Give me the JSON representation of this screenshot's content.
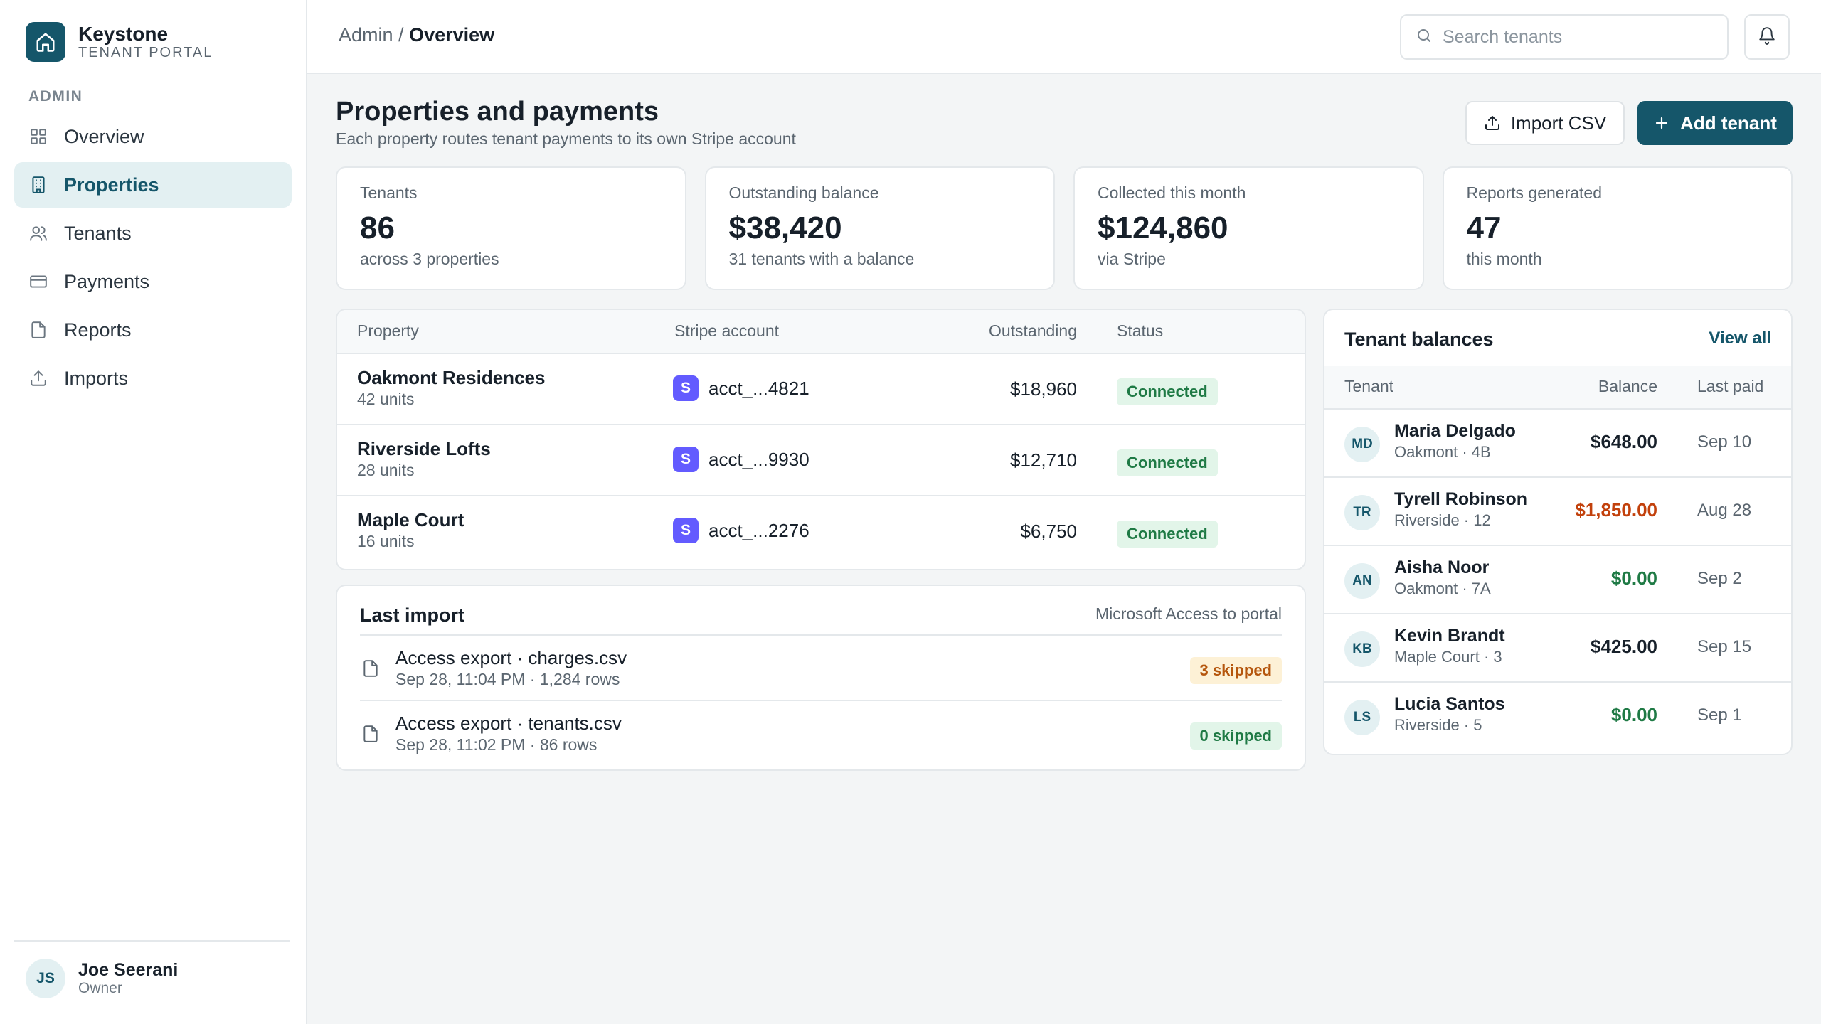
{
  "brand": {
    "name": "Keystone",
    "subtitle": "TENANT PORTAL"
  },
  "sidebar": {
    "section_label": "ADMIN",
    "items": [
      {
        "label": "Overview",
        "icon": "grid-icon",
        "active": false
      },
      {
        "label": "Properties",
        "icon": "building-icon",
        "active": true
      },
      {
        "label": "Tenants",
        "icon": "users-icon",
        "active": false
      },
      {
        "label": "Payments",
        "icon": "credit-card-icon",
        "active": false
      },
      {
        "label": "Reports",
        "icon": "file-icon",
        "active": false
      },
      {
        "label": "Imports",
        "icon": "upload-icon",
        "active": false
      }
    ],
    "user": {
      "initials": "JS",
      "name": "Joe Seerani",
      "role": "Owner"
    }
  },
  "topbar": {
    "breadcrumb_root": "Admin /",
    "breadcrumb_current": "Overview",
    "search_placeholder": "Search tenants"
  },
  "page": {
    "title": "Properties and payments",
    "subtitle": "Each property routes tenant payments to its own Stripe account",
    "import_button": "Import CSV",
    "add_button": "Add tenant"
  },
  "stats": [
    {
      "label": "Tenants",
      "value": "86",
      "note": "across 3 properties"
    },
    {
      "label": "Outstanding balance",
      "value": "$38,420",
      "note": "31 tenants with a balance"
    },
    {
      "label": "Collected this month",
      "value": "$124,860",
      "note": "via Stripe"
    },
    {
      "label": "Reports generated",
      "value": "47",
      "note": "this month"
    }
  ],
  "properties": {
    "headers": {
      "property": "Property",
      "stripe": "Stripe account",
      "outstanding": "Outstanding",
      "status": "Status"
    },
    "rows": [
      {
        "name": "Oakmont Residences",
        "units": "42 units",
        "stripe_badge": "S",
        "account": "acct_...4821",
        "outstanding": "$18,960",
        "status": "Connected"
      },
      {
        "name": "Riverside Lofts",
        "units": "28 units",
        "stripe_badge": "S",
        "account": "acct_...9930",
        "outstanding": "$12,710",
        "status": "Connected"
      },
      {
        "name": "Maple Court",
        "units": "16 units",
        "stripe_badge": "S",
        "account": "acct_...2276",
        "outstanding": "$6,750",
        "status": "Connected"
      }
    ]
  },
  "last_import": {
    "title": "Last import",
    "source": "Microsoft Access to portal",
    "items": [
      {
        "name": "Access export · charges.csv",
        "meta": "Sep 28, 11:04 PM · 1,284 rows",
        "badge": "3 skipped",
        "badge_type": "warn"
      },
      {
        "name": "Access export · tenants.csv",
        "meta": "Sep 28, 11:02 PM · 86 rows",
        "badge": "0 skipped",
        "badge_type": "good"
      }
    ]
  },
  "balances": {
    "title": "Tenant balances",
    "view_all": "View all",
    "headers": {
      "tenant": "Tenant",
      "balance": "Balance",
      "last_paid": "Last paid"
    },
    "rows": [
      {
        "initials": "MD",
        "name": "Maria Delgado",
        "unit": "Oakmont · 4B",
        "balance": "$648.00",
        "balance_color": "#17202a",
        "last_paid": "Sep 10"
      },
      {
        "initials": "TR",
        "name": "Tyrell Robinson",
        "unit": "Riverside · 12",
        "balance": "$1,850.00",
        "balance_color": "#c2410c",
        "last_paid": "Aug 28"
      },
      {
        "initials": "AN",
        "name": "Aisha Noor",
        "unit": "Oakmont · 7A",
        "balance": "$0.00",
        "balance_color": "#1f7a45",
        "last_paid": "Sep 2"
      },
      {
        "initials": "KB",
        "name": "Kevin Brandt",
        "unit": "Maple Court · 3",
        "balance": "$425.00",
        "balance_color": "#17202a",
        "last_paid": "Sep 15"
      },
      {
        "initials": "LS",
        "name": "Lucia Santos",
        "unit": "Riverside · 5",
        "balance": "$0.00",
        "balance_color": "#1f7a45",
        "last_paid": "Sep 1"
      }
    ]
  },
  "colors": {
    "accent": "#15566a",
    "stripe": "#635bff",
    "success": "#1f7a45",
    "warning": "#c2410c"
  }
}
